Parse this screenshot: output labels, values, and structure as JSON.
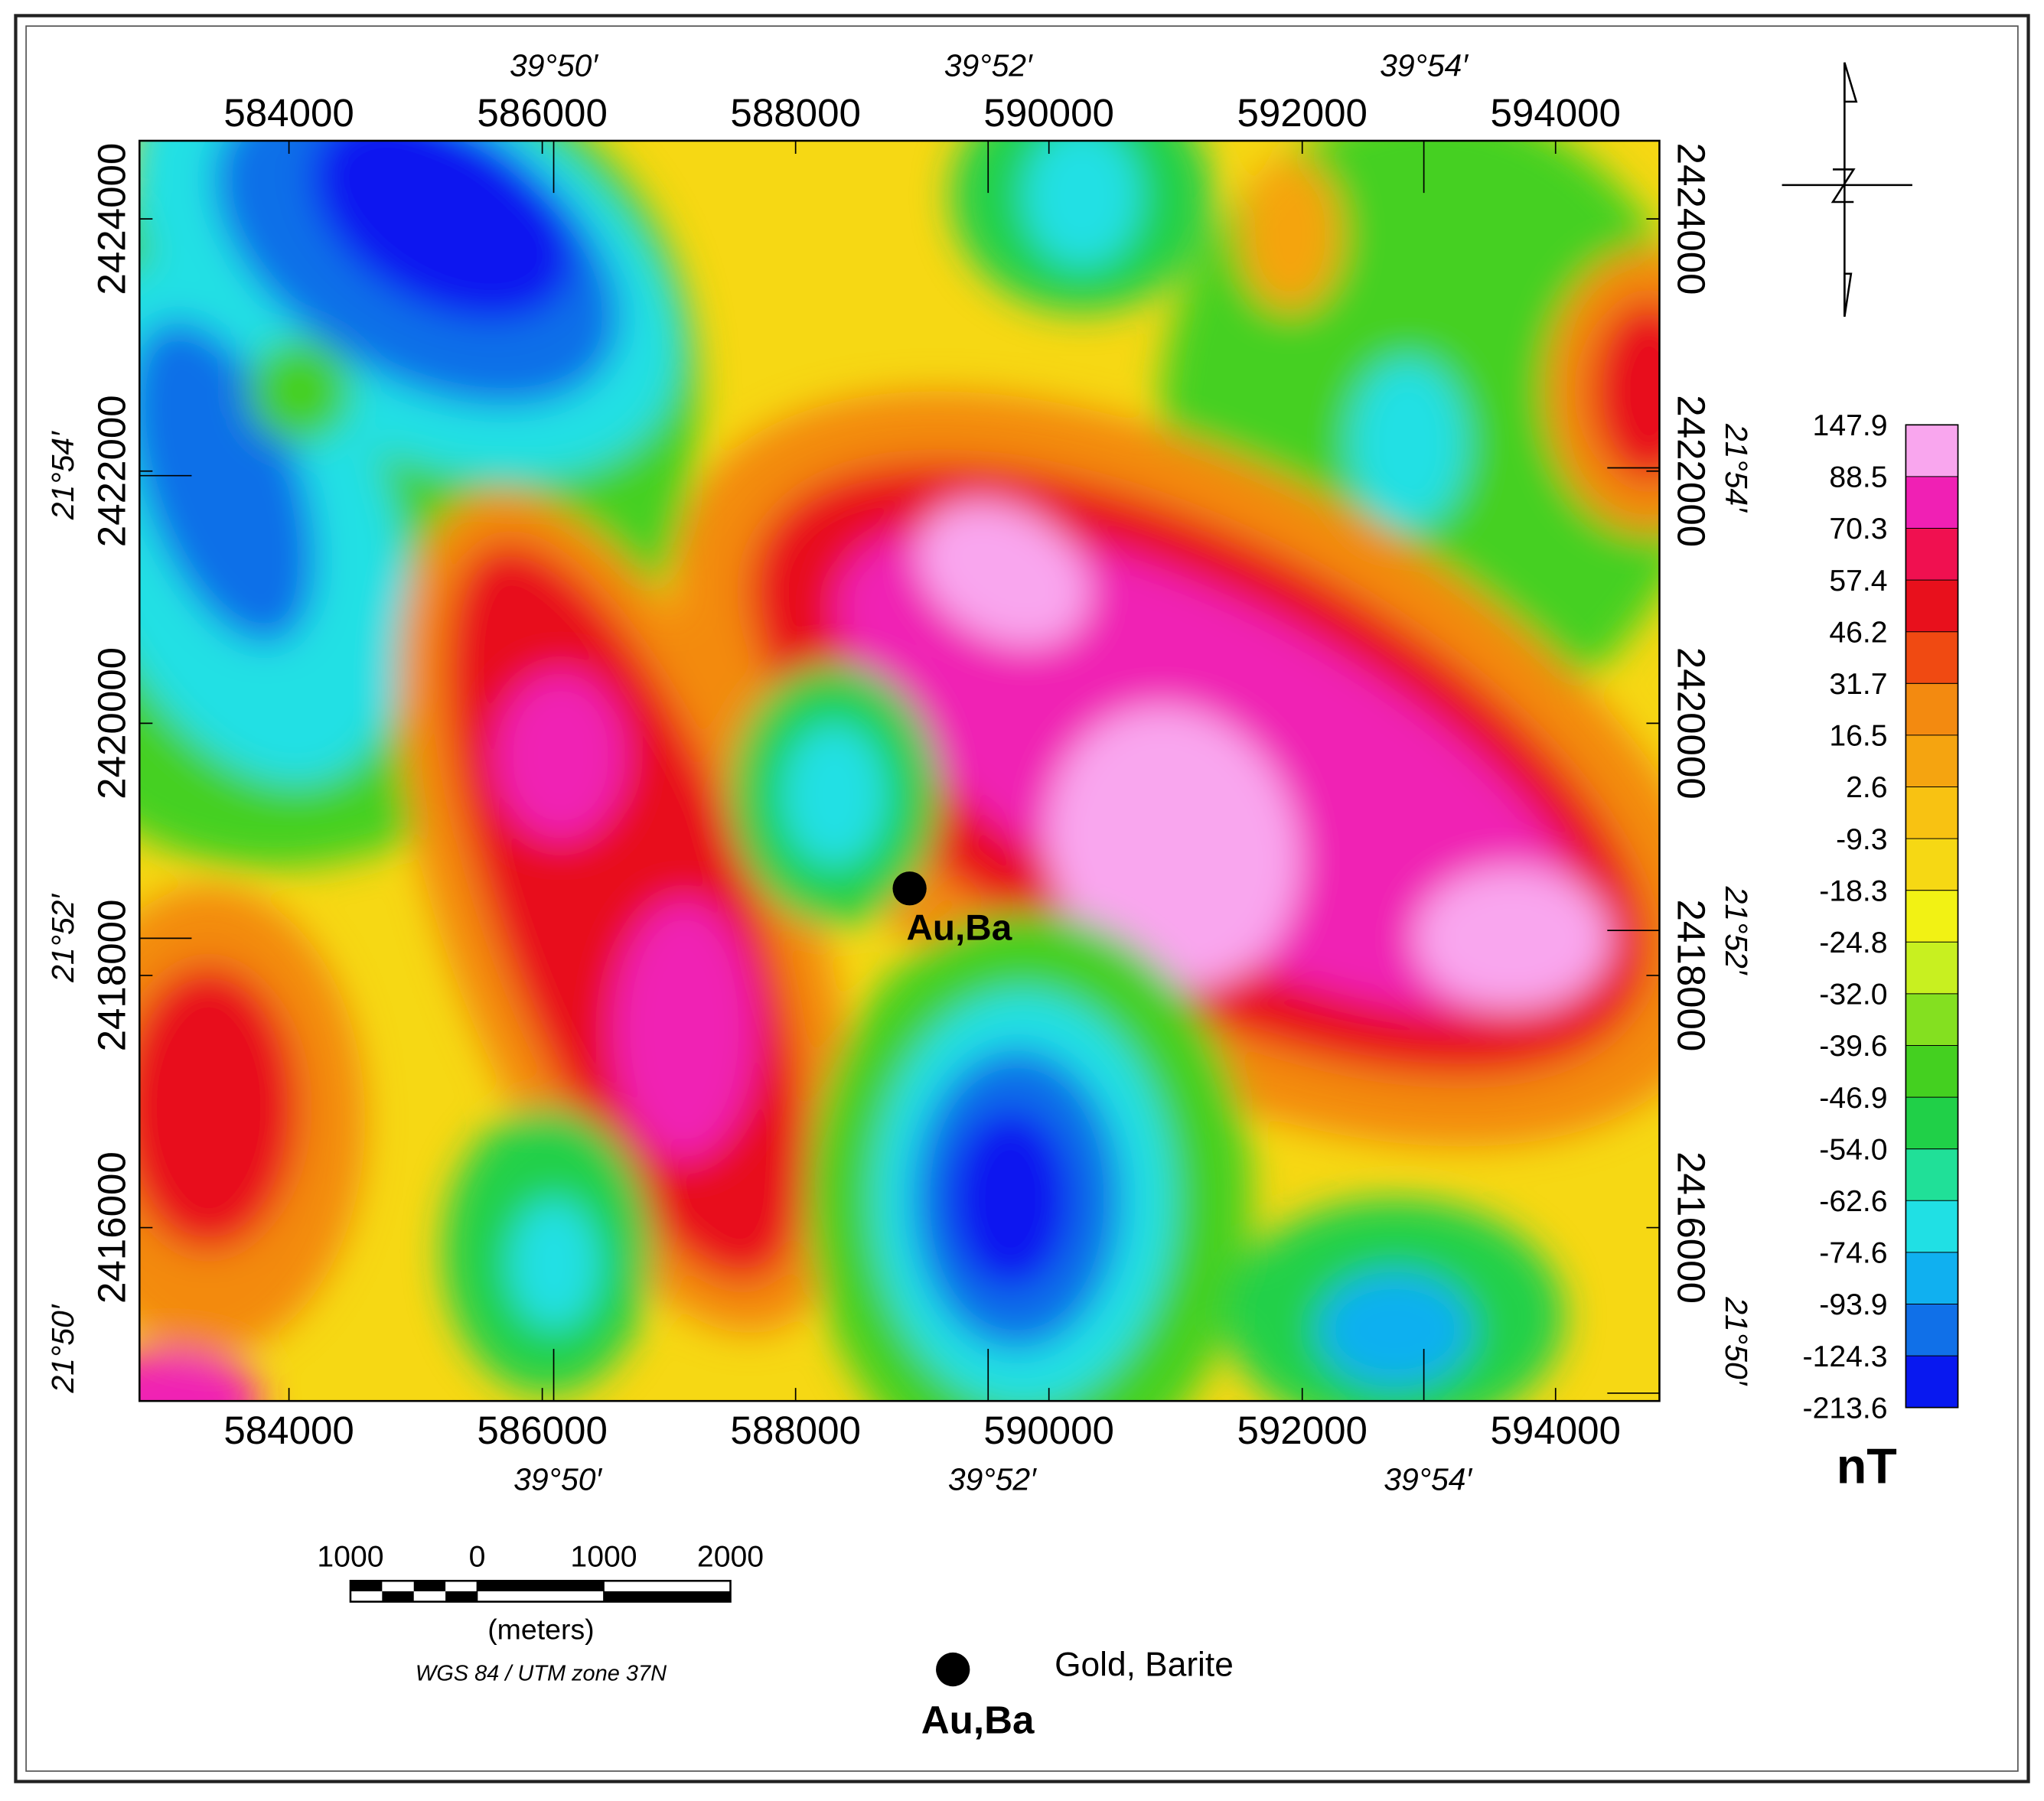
{
  "map": {
    "xlim": [
      582820,
      594820
    ],
    "ylim": [
      2414625,
      2424620
    ],
    "xticks": [
      584000,
      586000,
      588000,
      590000,
      592000,
      594000
    ],
    "yticks": [
      2416000,
      2418000,
      2420000,
      2422000,
      2424000
    ],
    "lon_ticks": [
      {
        "value": 586090,
        "label": "39°50′"
      },
      {
        "value": 589520,
        "label": "39°52′"
      },
      {
        "value": 592960,
        "label": "39°54′"
      }
    ],
    "lat_ticks": [
      {
        "value": 2414625,
        "label": "21°50′"
      },
      {
        "value": 2418295,
        "label": "21°52′"
      },
      {
        "value": 2421964,
        "label": "21°54′"
      }
    ],
    "occurrences": [
      {
        "label": "Au,Ba",
        "x": 588900,
        "y": 2418690
      }
    ]
  },
  "colorbar": {
    "unit": "nT",
    "levels": [
      147.9,
      88.5,
      70.3,
      57.4,
      46.2,
      31.7,
      16.5,
      2.6,
      -9.3,
      -18.3,
      -24.8,
      {
        "value": -32,
        "label": "-32.0"
      },
      -39.6,
      -46.9,
      {
        "value": -54,
        "label": "-54.0"
      },
      -62.6,
      -74.6,
      -93.9,
      -124.3,
      -213.6
    ],
    "colors": [
      "#f9a6ee",
      "#f020b4",
      "#f01050",
      "#e8101c",
      "#f04a12",
      "#f38a10",
      "#f5a410",
      "#f8c212",
      "#f6d814",
      "#f2f214",
      "#c8f020",
      "#84e020",
      "#44d020",
      "#20d048",
      "#20e098",
      "#20e0e4",
      "#10b0f0",
      "#1070e8",
      "#0818f0"
    ]
  },
  "scale_bar": {
    "ticks": [
      {
        "value": -1000,
        "label": "1000"
      },
      0,
      1000,
      2000
    ],
    "unit": "(meters)"
  },
  "projection": "WGS 84 / UTM zone 37N",
  "legend": {
    "symbol_label": "Au,Ba",
    "text": "Gold, Barite"
  }
}
